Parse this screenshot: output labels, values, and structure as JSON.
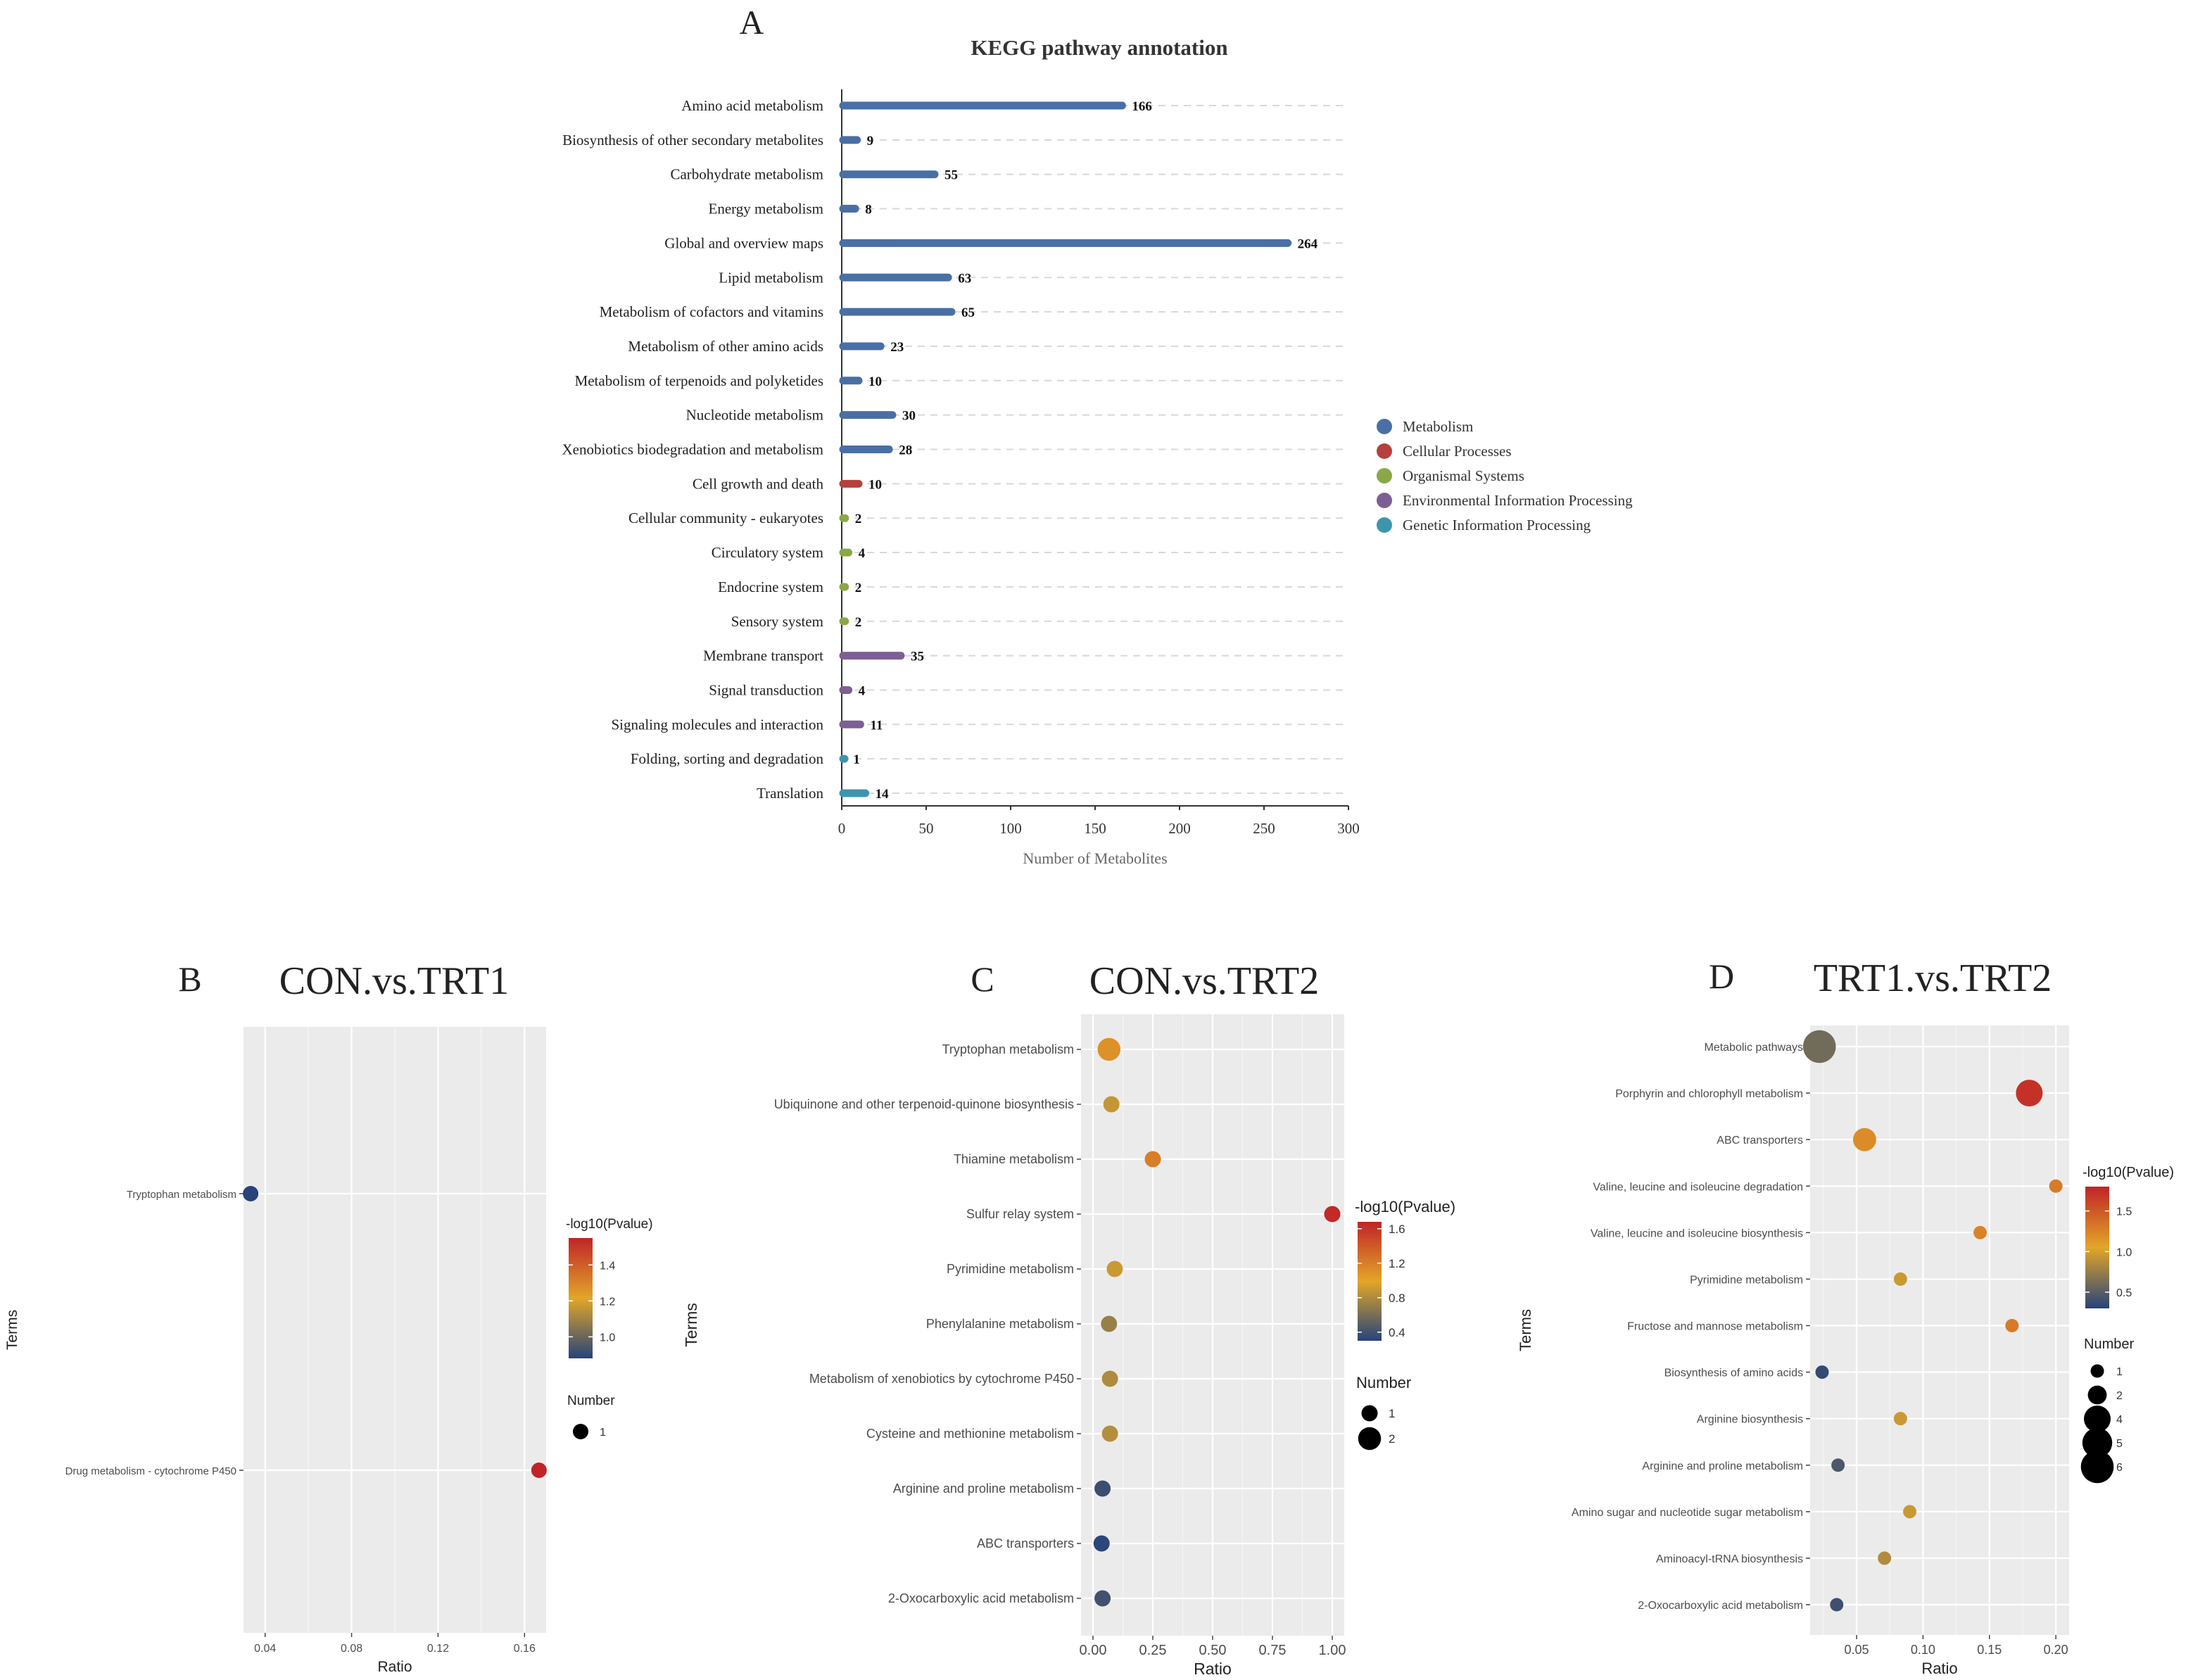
{
  "panel_a": {
    "letter": "A",
    "chart_data": {
      "type": "bar",
      "title": "KEGG pathway annotation",
      "xlabel": "Number of Metabolites",
      "ylabel": "",
      "xlim": [
        0,
        300
      ],
      "xticks": [
        "0",
        "50",
        "100",
        "150",
        "200",
        "250",
        "300"
      ],
      "grid": "horizontal dashed",
      "legend_position": "right",
      "legend": [
        {
          "name": "Metabolism",
          "color": "#4a6fa5"
        },
        {
          "name": "Cellular Processes",
          "color": "#b5403c"
        },
        {
          "name": "Organismal Systems",
          "color": "#8aa846"
        },
        {
          "name": "Environmental Information Processing",
          "color": "#7e5f94"
        },
        {
          "name": "Genetic Information Processing",
          "color": "#3d95ac"
        }
      ],
      "categories": [
        "Amino acid metabolism",
        "Biosynthesis of other secondary metabolites",
        "Carbohydrate metabolism",
        "Energy metabolism",
        "Global and overview maps",
        "Lipid metabolism",
        "Metabolism of cofactors and vitamins",
        "Metabolism of other amino acids",
        "Metabolism of terpenoids and polyketides",
        "Nucleotide metabolism",
        "Xenobiotics biodegradation and metabolism",
        "Cell growth and death",
        "Cellular community - eukaryotes",
        "Circulatory system",
        "Endocrine system",
        "Sensory system",
        "Membrane transport",
        "Signal transduction",
        "Signaling molecules and interaction",
        "Folding, sorting and degradation",
        "Translation"
      ],
      "values": [
        166,
        9,
        55,
        8,
        264,
        63,
        65,
        23,
        10,
        30,
        28,
        10,
        2,
        4,
        2,
        2,
        35,
        4,
        11,
        1,
        14
      ],
      "groups": [
        0,
        0,
        0,
        0,
        0,
        0,
        0,
        0,
        0,
        0,
        0,
        1,
        2,
        2,
        2,
        2,
        3,
        3,
        3,
        4,
        4
      ]
    }
  },
  "panel_b": {
    "letter": "B",
    "chart_data": {
      "type": "scatter",
      "title": "CON.vs.TRT1",
      "xlabel": "Ratio",
      "ylabel": "Terms",
      "xlim": [
        0.03,
        0.17
      ],
      "xticks": [
        "0.04",
        "0.08",
        "0.12",
        "0.16"
      ],
      "terms": [
        "Tryptophan metabolism",
        "Drug metabolism - cytochrome P450"
      ],
      "ratio": [
        0.0333,
        0.1667
      ],
      "pvalue": [
        0.88,
        1.55
      ],
      "number": [
        1,
        1
      ],
      "color_label": "-log10(Pvalue)",
      "color_range": [
        0.88,
        1.55
      ],
      "color_ticks": [
        "1.0",
        "1.2",
        "1.4"
      ],
      "size_label": "Number",
      "size_legend": [
        "1"
      ]
    }
  },
  "panel_c": {
    "letter": "C",
    "chart_data": {
      "type": "scatter",
      "title": "CON.vs.TRT2",
      "xlabel": "Ratio",
      "ylabel": "Terms",
      "xlim": [
        -0.05,
        1.05
      ],
      "xticks": [
        "0.00",
        "0.25",
        "0.50",
        "0.75",
        "1.00"
      ],
      "terms": [
        "Tryptophan metabolism",
        "Ubiquinone and other terpenoid-quinone biosynthesis",
        "Thiamine metabolism",
        "Sulfur relay system",
        "Pyrimidine metabolism",
        "Phenylalanine metabolism",
        "Metabolism of xenobiotics by cytochrome P450",
        "Cysteine and methionine metabolism",
        "Arginine and proline metabolism",
        "ABC transporters",
        "2-Oxocarboxylic acid metabolism"
      ],
      "ratio": [
        0.067,
        0.077,
        0.25,
        1.0,
        0.091,
        0.067,
        0.071,
        0.071,
        0.04,
        0.036,
        0.04
      ],
      "pvalue": [
        1.1,
        0.88,
        1.2,
        1.65,
        0.9,
        0.72,
        0.8,
        0.82,
        0.38,
        0.32,
        0.4
      ],
      "number": [
        2,
        1,
        1,
        1,
        1,
        1,
        1,
        1,
        1,
        1,
        1
      ],
      "color_label": "-log10(Pvalue)",
      "color_range": [
        0.3,
        1.68
      ],
      "color_ticks": [
        "0.4",
        "0.8",
        "1.2",
        "1.6"
      ],
      "size_label": "Number",
      "size_legend": [
        "1",
        "2"
      ]
    }
  },
  "panel_d": {
    "letter": "D",
    "chart_data": {
      "type": "scatter",
      "title": "TRT1.vs.TRT2",
      "xlabel": "Ratio",
      "ylabel": "Terms",
      "xlim": [
        0.015,
        0.21
      ],
      "xticks": [
        "0.05",
        "0.10",
        "0.15",
        "0.20"
      ],
      "terms": [
        "Metabolic pathways",
        "Porphyrin and chlorophyll metabolism",
        "ABC transporters",
        "Valine, leucine and isoleucine degradation",
        "Valine, leucine and isoleucine biosynthesis",
        "Pyrimidine metabolism",
        "Fructose and mannose metabolism",
        "Biosynthesis of amino acids",
        "Arginine biosynthesis",
        "Arginine and proline metabolism",
        "Amino sugar and nucleotide sugar metabolism",
        "Aminoacyl-tRNA biosynthesis",
        "2-Oxocarboxylic acid metabolism"
      ],
      "ratio": [
        0.022,
        0.18,
        0.056,
        0.2,
        0.143,
        0.083,
        0.167,
        0.024,
        0.083,
        0.036,
        0.09,
        0.071,
        0.035
      ],
      "pvalue": [
        0.6,
        1.72,
        1.2,
        1.3,
        1.25,
        0.95,
        1.3,
        0.35,
        0.95,
        0.45,
        0.95,
        0.85,
        0.4
      ],
      "number": [
        6,
        4,
        3,
        1,
        1,
        1,
        1,
        1,
        1,
        1,
        1,
        1,
        1
      ],
      "color_label": "-log10(Pvalue)",
      "color_range": [
        0.3,
        1.8
      ],
      "color_ticks": [
        "0.5",
        "1.0",
        "1.5"
      ],
      "size_label": "Number",
      "size_legend": [
        "1",
        "2",
        "4",
        "5",
        "6"
      ]
    }
  }
}
